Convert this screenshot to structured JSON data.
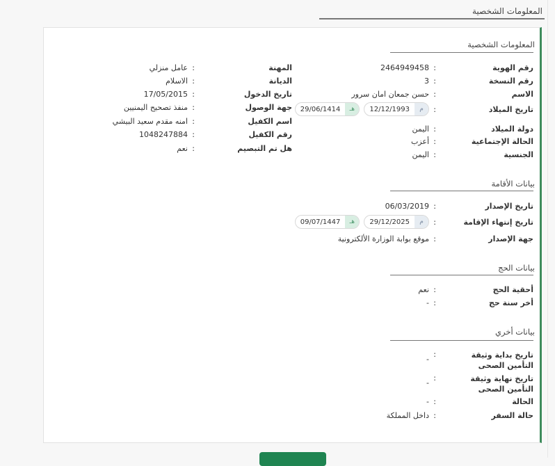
{
  "header": {
    "title": "المعلومات الشخصية"
  },
  "personal": {
    "title": "المعلومات الشخصية",
    "right": [
      {
        "label": "رقم الهوية",
        "value": "2464949458"
      },
      {
        "label": "رقم النسخة",
        "value": "3"
      },
      {
        "label": "الاسم",
        "value": "حسن جمعان امان سرور"
      },
      {
        "label": "تاريخ الميلاد",
        "gregorian": "12/12/1993",
        "gregorian_tag": "م",
        "hijri": "29/06/1414",
        "hijri_tag": "هـ"
      },
      {
        "label": "دولة الميلاد",
        "value": "اليمن"
      },
      {
        "label": "الحالة الإجتماعية",
        "value": "أعزب"
      },
      {
        "label": "الجنسية",
        "value": "اليمن"
      }
    ],
    "left": [
      {
        "label": "المهنة",
        "value": "عامل منزلي"
      },
      {
        "label": "الديانة",
        "value": "الاسلام"
      },
      {
        "label": "تاريخ الدخول",
        "value": "17/05/2015"
      },
      {
        "label": "جهة الوصول",
        "value": "منفذ تصحيح اليمنيين"
      },
      {
        "label": "اسم الكفيل",
        "value": "امنه مقدم سعيد البيشي"
      },
      {
        "label": "رقم الكفيل",
        "value": "1048247884"
      },
      {
        "label": "هل تم التبصيم",
        "value": "نعم"
      }
    ]
  },
  "residence": {
    "title": "بيانات الأقامة",
    "rows": [
      {
        "label": "تاريخ الإصدار",
        "value": "06/03/2019"
      },
      {
        "label": "تاريخ إنتهاء الإقامة",
        "gregorian": "29/12/2025",
        "gregorian_tag": "م",
        "hijri": "09/07/1447",
        "hijri_tag": "هـ"
      },
      {
        "label": "جهة الإصدار",
        "value": "موقع بوابة الوزارة الألكترونية"
      }
    ]
  },
  "hajj": {
    "title": "بيانات الحج",
    "rows": [
      {
        "label": "أحقية الحج",
        "value": "نعم"
      },
      {
        "label": "أخر سنة حج",
        "value": "-"
      }
    ]
  },
  "other": {
    "title": "بيانات أخري",
    "rows": [
      {
        "label": "تاريخ بداية وثيقة التأمين الصحى",
        "value": "-"
      },
      {
        "label": "تاريخ نهاية وثيقة التأمين الصحى",
        "value": "-"
      },
      {
        "label": "الحالة",
        "value": "-"
      },
      {
        "label": "حالة السفر",
        "value": "داخل المملكة"
      }
    ]
  },
  "colon": ":",
  "colors": {
    "accent": "#1f8451",
    "card_border": "#3d8b5c"
  }
}
